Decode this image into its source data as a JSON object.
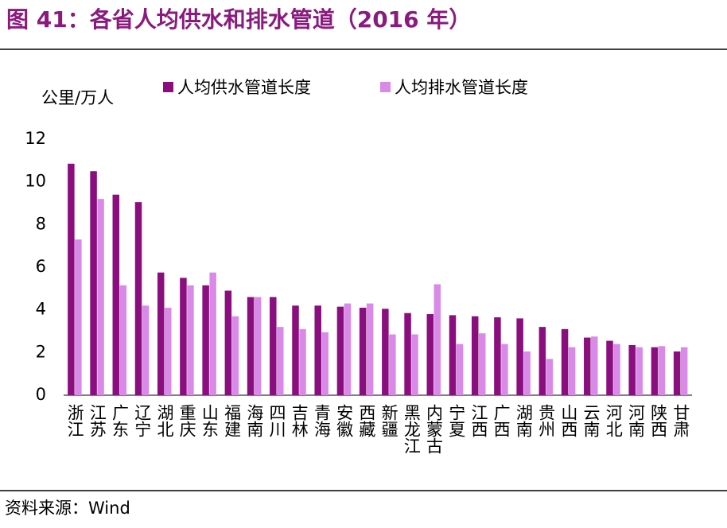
{
  "chart_data": {
    "type": "bar",
    "title": "图 41：各省人均供水和排水管道（2016 年）",
    "y_label": "公里/万人",
    "source": "资料来源：Wind",
    "categories": [
      "浙江",
      "江苏",
      "广东",
      "辽宁",
      "湖北",
      "重庆",
      "山东",
      "福建",
      "海南",
      "四川",
      "吉林",
      "青海",
      "安徽",
      "西藏",
      "新疆",
      "黑龙江",
      "内蒙古",
      "宁夏",
      "江西",
      "广西",
      "湖南",
      "贵州",
      "山西",
      "云南",
      "河北",
      "河南",
      "陕西",
      "甘肃"
    ],
    "series": [
      {
        "name": "人均供水管道长度",
        "color": "#8b0e7f",
        "values": [
          10.85,
          10.5,
          9.4,
          9.05,
          5.75,
          5.5,
          5.15,
          4.9,
          4.6,
          4.6,
          4.2,
          4.2,
          4.15,
          4.1,
          4.05,
          3.85,
          3.8,
          3.75,
          3.7,
          3.65,
          3.6,
          3.2,
          3.1,
          2.7,
          2.55,
          2.35,
          2.25,
          2.05
        ]
      },
      {
        "name": "人均排水管道长度",
        "color": "#d98ae8",
        "values": [
          7.3,
          9.2,
          5.15,
          4.2,
          4.1,
          5.15,
          5.75,
          3.7,
          4.6,
          3.2,
          3.1,
          2.95,
          4.3,
          4.3,
          2.85,
          2.85,
          5.2,
          2.4,
          2.9,
          2.4,
          2.05,
          1.7,
          2.25,
          2.75,
          2.4,
          2.25,
          2.3,
          2.25
        ]
      }
    ],
    "ylim": [
      0,
      12
    ],
    "yticks": [
      0,
      2,
      4,
      6,
      8,
      10,
      12
    ]
  }
}
